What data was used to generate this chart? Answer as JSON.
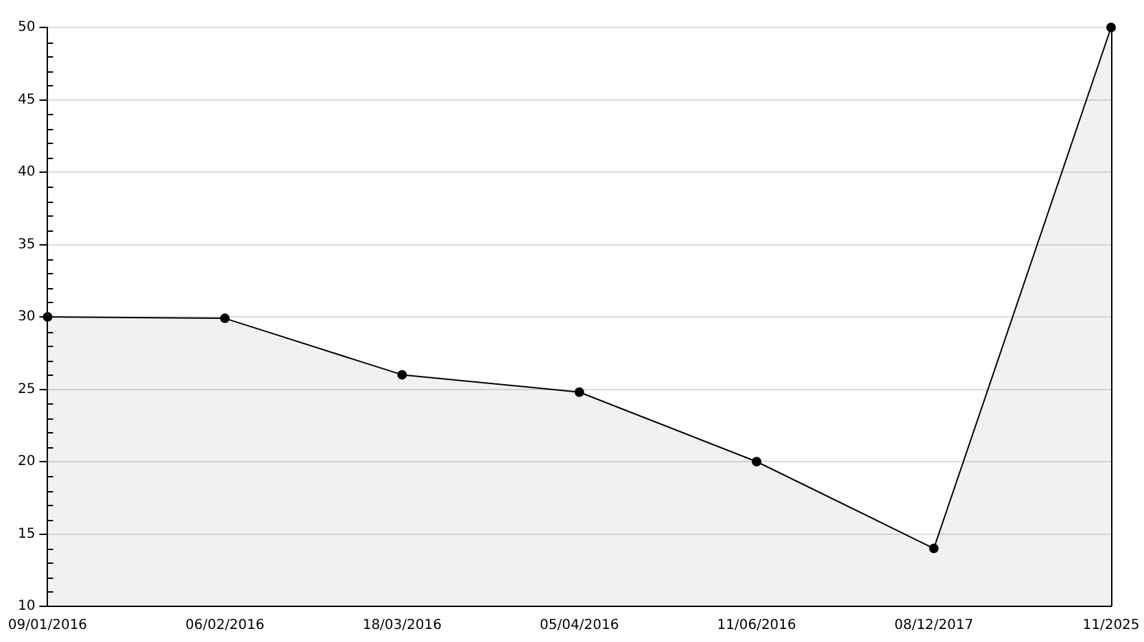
{
  "chart_data": {
    "type": "area",
    "categories": [
      "09/01/2016",
      "06/02/2016",
      "18/03/2016",
      "05/04/2016",
      "11/06/2016",
      "08/12/2017",
      "11/2025"
    ],
    "series": [
      {
        "color": "#000000",
        "values": [
          30,
          29.9,
          26,
          24.8,
          20,
          14,
          50
        ]
      }
    ],
    "ylim": [
      10,
      50
    ],
    "yticks": [
      10,
      15,
      20,
      25,
      30,
      35,
      40,
      45,
      50
    ],
    "grid": "y",
    "legend": false,
    "marker": "circle",
    "line_style": "solid"
  }
}
